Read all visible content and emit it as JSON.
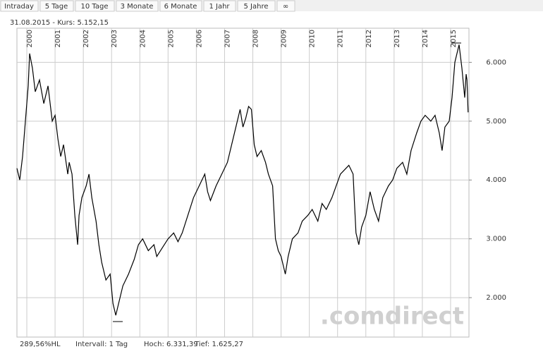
{
  "tabs": [
    "Intraday",
    "5 Tage",
    "10 Tage",
    "3 Monate",
    "6 Monate",
    "1 Jahr",
    "5 Jahre",
    "∞"
  ],
  "info": "31.08.2015  -  Kurs: 5.152,15",
  "footer": [
    "289,56%HL",
    "Intervall: 1 Tag",
    "Hoch:  6.331,39",
    "Tief:  1.625,27"
  ],
  "watermark": ".comdirect",
  "chart_data": {
    "type": "line",
    "color": "#000000",
    "grid": true,
    "xlim": [
      1999.65,
      2015.65
    ],
    "xticks": [
      2000,
      2001,
      2002,
      2003,
      2004,
      2005,
      2006,
      2007,
      2008,
      2009,
      2010,
      2011,
      2012,
      2013,
      2014,
      2015
    ],
    "ylim": [
      1330,
      6580
    ],
    "yticks": [
      {
        "value": 2000,
        "label": "2.000"
      },
      {
        "value": 3000,
        "label": "3.000"
      },
      {
        "value": 4000,
        "label": "4.000"
      },
      {
        "value": 5000,
        "label": "5.000"
      },
      {
        "value": 6000,
        "label": "6.000"
      }
    ],
    "x": [
      1999.65,
      1999.75,
      1999.85,
      1999.95,
      2000.05,
      2000.1,
      2000.2,
      2000.3,
      2000.45,
      2000.6,
      2000.75,
      2000.9,
      2001.0,
      2001.1,
      2001.2,
      2001.3,
      2001.45,
      2001.5,
      2001.6,
      2001.7,
      2001.8,
      2001.85,
      2001.95,
      2002.1,
      2002.2,
      2002.3,
      2002.45,
      2002.55,
      2002.65,
      2002.8,
      2002.95,
      2003.05,
      2003.15,
      2003.25,
      2003.4,
      2003.6,
      2003.8,
      2003.95,
      2004.1,
      2004.3,
      2004.5,
      2004.6,
      2004.8,
      2005.0,
      2005.2,
      2005.35,
      2005.5,
      2005.7,
      2005.9,
      2006.1,
      2006.3,
      2006.4,
      2006.5,
      2006.7,
      2006.9,
      2007.1,
      2007.3,
      2007.45,
      2007.55,
      2007.65,
      2007.75,
      2007.85,
      2007.95,
      2008.05,
      2008.15,
      2008.3,
      2008.45,
      2008.55,
      2008.7,
      2008.8,
      2008.9,
      2009.0,
      2009.15,
      2009.25,
      2009.4,
      2009.6,
      2009.75,
      2009.95,
      2010.1,
      2010.3,
      2010.45,
      2010.6,
      2010.8,
      2010.95,
      2011.1,
      2011.3,
      2011.4,
      2011.55,
      2011.6,
      2011.65,
      2011.75,
      2011.85,
      2012.0,
      2012.15,
      2012.3,
      2012.45,
      2012.6,
      2012.8,
      2012.95,
      2013.1,
      2013.3,
      2013.45,
      2013.6,
      2013.8,
      2013.95,
      2014.1,
      2014.3,
      2014.45,
      2014.6,
      2014.7,
      2014.8,
      2014.95,
      2015.05,
      2015.15,
      2015.3,
      2015.4,
      2015.5,
      2015.55,
      2015.58,
      2015.62
    ],
    "values": [
      4200,
      4000,
      4400,
      5000,
      5600,
      6150,
      5900,
      5500,
      5700,
      5300,
      5600,
      5000,
      5100,
      4700,
      4400,
      4600,
      4100,
      4300,
      4100,
      3400,
      2900,
      3400,
      3700,
      3900,
      4100,
      3700,
      3300,
      2900,
      2600,
      2300,
      2400,
      1900,
      1700,
      1900,
      2200,
      2400,
      2650,
      2900,
      3000,
      2800,
      2900,
      2700,
      2850,
      3000,
      3100,
      2950,
      3100,
      3400,
      3700,
      3900,
      4100,
      3800,
      3650,
      3900,
      4100,
      4300,
      4700,
      5000,
      5200,
      4900,
      5050,
      5250,
      5200,
      4600,
      4400,
      4500,
      4300,
      4100,
      3900,
      3000,
      2800,
      2700,
      2400,
      2700,
      3000,
      3100,
      3300,
      3400,
      3500,
      3300,
      3600,
      3500,
      3700,
      3900,
      4100,
      4200,
      4250,
      4100,
      3600,
      3100,
      2900,
      3200,
      3400,
      3800,
      3500,
      3300,
      3700,
      3900,
      4000,
      4200,
      4300,
      4100,
      4500,
      4800,
      5000,
      5100,
      5000,
      5100,
      4800,
      4500,
      4900,
      5000,
      5400,
      6000,
      6300,
      5900,
      5400,
      5800,
      5700,
      5150
    ]
  }
}
